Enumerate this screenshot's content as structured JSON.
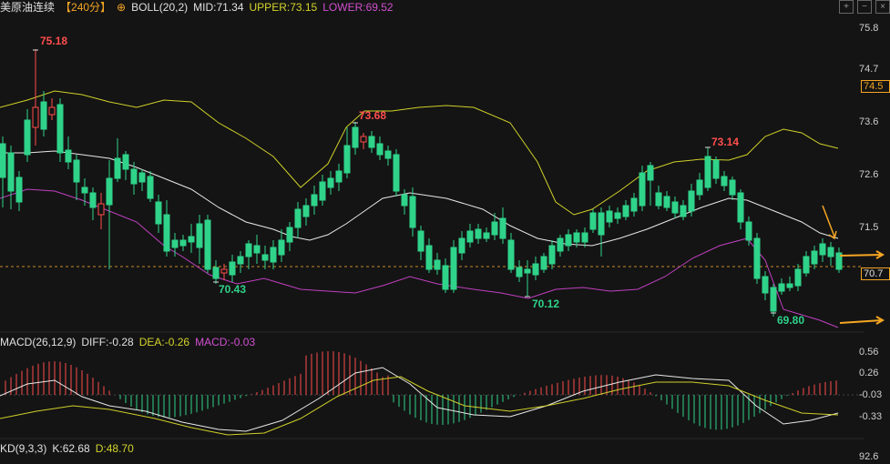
{
  "header": {
    "symbol": "美原油连续",
    "period": "【240分】",
    "indicator": "BOLL(20,2)",
    "mid_label": "MID:71.34",
    "upper_label": "UPPER:73.15",
    "lower_label": "LOWER:69.52"
  },
  "toolbar": {
    "plus": "+",
    "minus": "−",
    "close": "×"
  },
  "price_axis": [
    "75.8",
    "74.7",
    "73.6",
    "72.6",
    "71.5",
    "70.7"
  ],
  "price_tags": {
    "orange": "74.5",
    "current": "70.7"
  },
  "annotations": [
    {
      "text": "75.18",
      "color": "#ff4d4d"
    },
    {
      "text": "73.68",
      "color": "#ff4d4d"
    },
    {
      "text": "73.14",
      "color": "#ff4d4d"
    },
    {
      "text": "70.43",
      "color": "#2fd38a"
    },
    {
      "text": "70.12",
      "color": "#2fd38a"
    },
    {
      "text": "69.80",
      "color": "#2fd38a"
    }
  ],
  "macd": {
    "label": "MACD(26,12,9)",
    "diff": "DIFF:-0.28",
    "dea": "DEA:-0.26",
    "value": "MACD:-0.03",
    "axis": [
      "0.56",
      "0.26",
      "-0.03",
      "-0.33"
    ]
  },
  "kd": {
    "label": "KD(9,3,3)",
    "k": "K:62.68",
    "d": "D:48.70",
    "axis": [
      "92.6"
    ]
  },
  "colors": {
    "up": "#ff4d4d",
    "down": "#2fd38a",
    "mid": "#e8e8e8",
    "upper": "#cfcf2a",
    "lower": "#c040c0",
    "arrow": "#f5a623"
  }
}
